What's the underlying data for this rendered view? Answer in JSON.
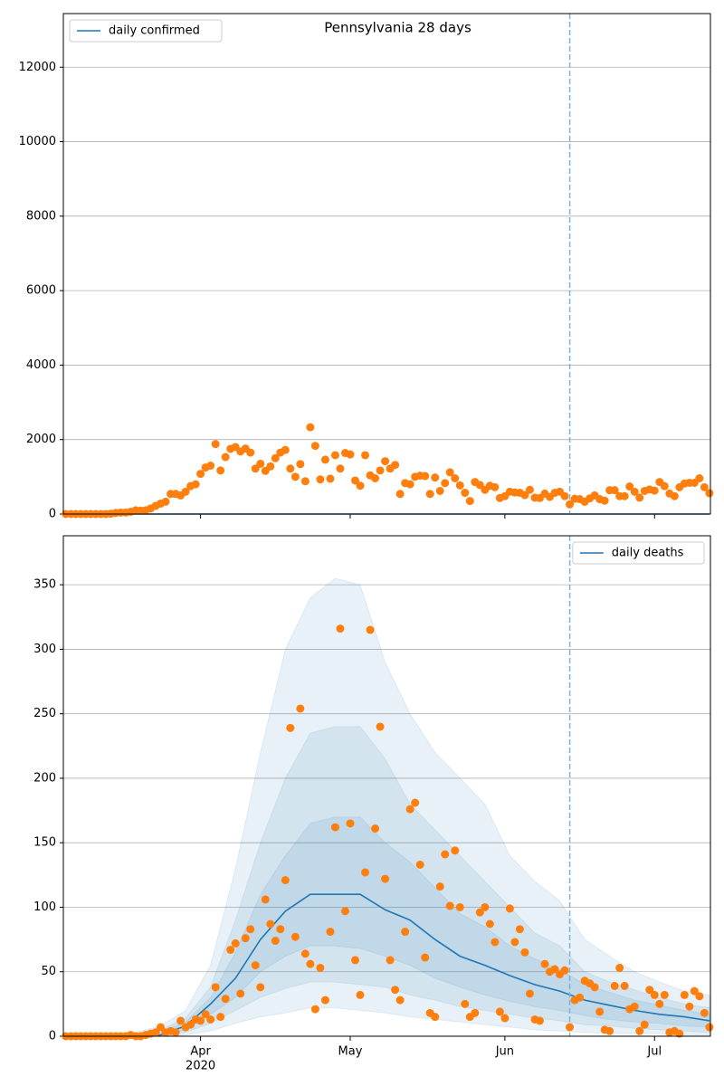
{
  "chart_data": [
    {
      "type": "line",
      "title": "Pennsylvania 28 days",
      "xlim": [
        64.5,
        194.2
      ],
      "ylim": [
        0,
        13440
      ],
      "yticks": [
        0,
        2000,
        4000,
        6000,
        8000,
        10000,
        12000
      ],
      "grid": true,
      "legend": "upper left",
      "vline": 166,
      "vline_color": "#7fb2d9",
      "model_x": [
        74,
        79,
        84,
        89,
        94,
        99,
        104,
        109,
        114,
        119,
        124,
        129,
        134,
        139,
        144,
        149,
        154,
        159,
        164,
        169,
        174,
        179,
        184,
        189,
        194
      ],
      "series": [
        {
          "name": "daily confirmed",
          "color": "#1f77b4",
          "values": [
            0,
            0,
            0,
            0,
            0,
            0,
            0,
            0,
            0,
            0,
            0,
            0,
            0,
            0,
            0,
            0,
            0,
            0,
            0,
            0,
            0,
            0,
            0,
            0,
            0
          ]
        }
      ],
      "observed": {
        "color": "#ff7f0e",
        "x": [
          65,
          66,
          67,
          68,
          69,
          70,
          71,
          72,
          73,
          74,
          75,
          76,
          77,
          78,
          79,
          80,
          81,
          82,
          83,
          84,
          85,
          86,
          87,
          88,
          89,
          90,
          91,
          92,
          93,
          94,
          95,
          96,
          97,
          98,
          99,
          100,
          101,
          102,
          103,
          104,
          105,
          106,
          107,
          108,
          109,
          110,
          111,
          112,
          113,
          114,
          115,
          116,
          117,
          118,
          119,
          120,
          121,
          122,
          123,
          124,
          125,
          126,
          127,
          128,
          129,
          130,
          131,
          132,
          133,
          134,
          135,
          136,
          137,
          138,
          139,
          140,
          141,
          142,
          143,
          144,
          145,
          146,
          147,
          148,
          149,
          150,
          151,
          152,
          153,
          154,
          155,
          156,
          157,
          158,
          159,
          160,
          161,
          162,
          163,
          164,
          165,
          166,
          167,
          168,
          169,
          170,
          171,
          172,
          173,
          174,
          175,
          176,
          177,
          178,
          179,
          180,
          181,
          182,
          183,
          184,
          185,
          186,
          187,
          188,
          189,
          190,
          191,
          192,
          193,
          194
        ],
        "values": [
          0,
          0,
          0,
          0,
          0,
          0,
          0,
          0,
          0,
          10,
          30,
          40,
          40,
          60,
          100,
          90,
          100,
          150,
          220,
          280,
          330,
          540,
          540,
          500,
          600,
          750,
          800,
          1080,
          1250,
          1300,
          1880,
          1170,
          1530,
          1750,
          1800,
          1680,
          1760,
          1650,
          1220,
          1350,
          1160,
          1280,
          1500,
          1650,
          1720,
          1220,
          1000,
          1340,
          880,
          2330,
          1830,
          930,
          1460,
          950,
          1580,
          1220,
          1640,
          1600,
          900,
          760,
          1580,
          1040,
          960,
          1170,
          1420,
          1220,
          1320,
          540,
          830,
          800,
          1000,
          1030,
          1020,
          540,
          980,
          620,
          830,
          1120,
          960,
          770,
          570,
          350,
          860,
          780,
          650,
          760,
          720,
          430,
          480,
          600,
          580,
          570,
          510,
          650,
          440,
          430,
          550,
          460,
          570,
          600,
          480,
          260,
          410,
          400,
          330,
          420,
          500,
          400,
          360,
          640,
          640,
          480,
          480,
          740,
          600,
          440,
          620,
          660,
          630,
          860,
          750,
          550,
          480,
          720,
          820,
          840,
          840,
          960,
          720,
          560
        ]
      }
    },
    {
      "type": "line",
      "xlim": [
        64.5,
        194.2
      ],
      "xticks": [
        {
          "value": 92,
          "label": "Apr"
        },
        {
          "value": 122,
          "label": "May"
        },
        {
          "value": 153,
          "label": "Jun"
        },
        {
          "value": 183,
          "label": "Jul"
        }
      ],
      "x_year_label": "2020",
      "ylim": [
        0,
        388
      ],
      "yticks": [
        0,
        50,
        100,
        150,
        200,
        250,
        300,
        350
      ],
      "grid": true,
      "legend": "upper right",
      "vline": 166,
      "vline_color": "#7fb2d9",
      "model_x": [
        74,
        79,
        84,
        89,
        94,
        99,
        104,
        109,
        114,
        119,
        124,
        129,
        134,
        139,
        144,
        149,
        154,
        159,
        164,
        169,
        174,
        179,
        184,
        189,
        194
      ],
      "band_color": "#1f77b4",
      "bands": [
        {
          "lower": [
            0,
            0,
            0,
            1,
            4,
            10,
            15,
            18,
            22,
            22,
            20,
            18,
            15,
            13,
            11,
            9,
            7,
            5,
            4,
            3,
            2,
            2,
            2,
            1,
            1
          ],
          "upper": [
            1,
            3,
            8,
            20,
            55,
            130,
            220,
            300,
            340,
            355,
            350,
            290,
            250,
            220,
            200,
            180,
            140,
            120,
            105,
            75,
            62,
            50,
            42,
            35,
            32
          ]
        },
        {
          "lower": [
            0,
            0,
            0,
            3,
            10,
            20,
            30,
            37,
            42,
            42,
            40,
            38,
            32,
            28,
            23,
            20,
            17,
            14,
            12,
            9,
            8,
            6,
            5,
            4,
            3
          ],
          "upper": [
            0.5,
            2,
            5,
            14,
            38,
            90,
            150,
            200,
            235,
            240,
            240,
            215,
            180,
            160,
            140,
            120,
            100,
            80,
            70,
            50,
            42,
            36,
            30,
            25,
            22
          ]
        },
        {
          "lower": [
            0,
            0,
            0.5,
            5,
            17,
            30,
            50,
            62,
            70,
            70,
            68,
            62,
            55,
            45,
            38,
            32,
            27,
            23,
            20,
            16,
            13,
            11,
            10,
            8,
            7
          ],
          "upper": [
            0,
            1,
            3,
            11,
            30,
            65,
            110,
            140,
            165,
            170,
            170,
            150,
            135,
            115,
            95,
            85,
            70,
            60,
            52,
            40,
            34,
            28,
            24,
            20,
            17
          ]
        }
      ],
      "series": [
        {
          "name": "daily deaths",
          "color": "#1f77b4",
          "values": [
            0,
            0,
            1,
            8,
            25,
            45,
            75,
            97,
            110,
            110,
            110,
            98,
            90,
            75,
            62,
            55,
            47,
            40,
            35,
            28,
            24,
            20,
            17,
            15,
            12
          ]
        }
      ],
      "observed": {
        "color": "#ff7f0e",
        "x": [
          65,
          66,
          67,
          68,
          69,
          70,
          71,
          72,
          73,
          74,
          75,
          76,
          77,
          78,
          79,
          80,
          81,
          82,
          83,
          84,
          85,
          86,
          87,
          88,
          89,
          90,
          91,
          92,
          93,
          94,
          95,
          96,
          97,
          98,
          99,
          100,
          101,
          102,
          103,
          104,
          105,
          106,
          107,
          108,
          109,
          110,
          111,
          112,
          113,
          114,
          115,
          116,
          117,
          118,
          119,
          120,
          121,
          122,
          123,
          124,
          125,
          126,
          127,
          128,
          129,
          130,
          131,
          132,
          133,
          134,
          135,
          136,
          137,
          138,
          139,
          140,
          141,
          142,
          143,
          144,
          145,
          146,
          147,
          148,
          149,
          150,
          151,
          152,
          153,
          154,
          155,
          156,
          157,
          158,
          159,
          160,
          161,
          162,
          163,
          164,
          165,
          166,
          167,
          168,
          169,
          170,
          171,
          172,
          173,
          174,
          175,
          176,
          177,
          178,
          179,
          180,
          181,
          182,
          183,
          184,
          185,
          186,
          187,
          188,
          189,
          190,
          191,
          192,
          193,
          194
        ],
        "values": [
          0,
          0,
          0,
          0,
          0,
          0,
          0,
          0,
          0,
          0,
          0,
          0,
          0,
          1,
          0,
          0,
          1,
          2,
          3,
          7,
          3,
          4,
          3,
          12,
          7,
          9,
          13,
          12,
          17,
          13,
          38,
          15,
          29,
          67,
          72,
          33,
          76,
          83,
          55,
          38,
          106,
          87,
          74,
          83,
          121,
          239,
          77,
          254,
          64,
          56,
          21,
          53,
          28,
          81,
          162,
          316,
          97,
          165,
          59,
          32,
          127,
          315,
          161,
          240,
          122,
          59,
          36,
          28,
          81,
          176,
          181,
          133,
          61,
          18,
          15,
          116,
          141,
          101,
          144,
          100,
          25,
          15,
          18,
          96,
          100,
          87,
          73,
          19,
          14,
          99,
          73,
          83,
          65,
          33,
          13,
          12,
          56,
          50,
          52,
          48,
          51,
          7,
          28,
          30,
          43,
          41,
          38,
          19,
          5,
          4,
          39,
          53,
          39,
          21,
          23,
          4,
          9,
          36,
          32,
          25,
          32,
          3,
          4,
          2,
          32,
          23,
          35,
          31,
          18,
          7
        ]
      }
    }
  ]
}
